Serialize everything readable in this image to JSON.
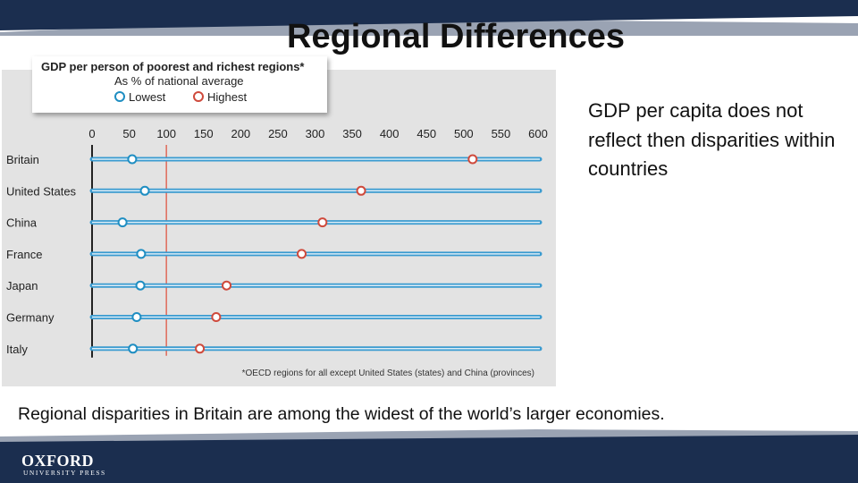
{
  "slide": {
    "title": "Regional Differences",
    "side_text": "GDP per capita does not reflect then disparities within countries",
    "caption": "Regional disparities in Britain are among the widest of the world’s larger economies.",
    "publisher_main": "OXFORD",
    "publisher_sub": "UNIVERSITY PRESS"
  },
  "colors": {
    "brand_navy": "#1b2e4f",
    "lowest": "#1f8ec2",
    "highest": "#cf4a3c",
    "reference_line": "#e06a5a"
  },
  "chart_data": {
    "type": "dot-range",
    "title": "GDP per person of poorest and richest regions*",
    "subtitle": "As % of national average",
    "legend": [
      {
        "name": "Lowest",
        "color": "#1f8ec2"
      },
      {
        "name": "Highest",
        "color": "#cf4a3c"
      }
    ],
    "xlim": [
      0,
      600
    ],
    "ticks": [
      0,
      50,
      100,
      150,
      200,
      250,
      300,
      350,
      400,
      450,
      500,
      550,
      600
    ],
    "reference_value": 100,
    "grid": false,
    "categories": [
      "Britain",
      "United States",
      "China",
      "France",
      "Japan",
      "Germany",
      "Italy"
    ],
    "series": [
      {
        "name": "Lowest",
        "values": [
          54,
          71,
          41,
          66,
          65,
          60,
          55
        ]
      },
      {
        "name": "Highest",
        "values": [
          512,
          362,
          310,
          282,
          181,
          167,
          145
        ]
      }
    ],
    "footnote": "*OECD regions for all except United States (states) and China (provinces)"
  }
}
